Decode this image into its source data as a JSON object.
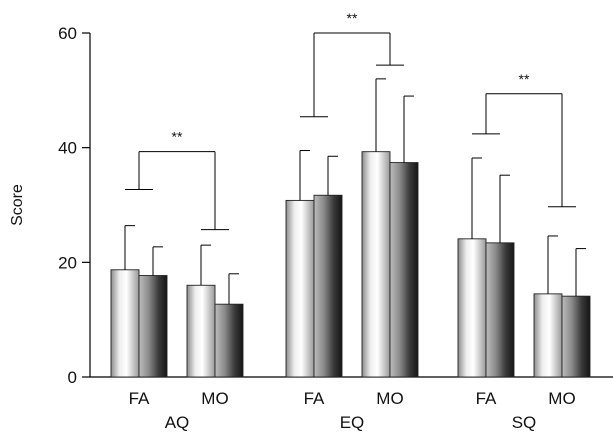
{
  "chart_data": {
    "type": "bar",
    "title": "",
    "xlabel": "",
    "ylabel": "Score",
    "ylim": [
      0,
      60
    ],
    "yticks": [
      0,
      20,
      40,
      60
    ],
    "grid": false,
    "groups": [
      {
        "label": "AQ",
        "subgroups": [
          {
            "label": "FA",
            "values": [
              18.7,
              17.7
            ],
            "errors": [
              7.7,
              5.0
            ]
          },
          {
            "label": "MO",
            "values": [
              16.0,
              12.7
            ],
            "errors": [
              7.0,
              5.3
            ]
          }
        ],
        "significance": {
          "text": "**",
          "left_y": 32.7,
          "top_y": 39.3,
          "right_y": 25.7
        }
      },
      {
        "label": "EQ",
        "subgroups": [
          {
            "label": "FA",
            "values": [
              30.8,
              31.7
            ],
            "errors": [
              8.7,
              6.8
            ]
          },
          {
            "label": "MO",
            "values": [
              39.3,
              37.4
            ],
            "errors": [
              12.7,
              11.6
            ]
          }
        ],
        "significance": {
          "text": "**",
          "left_y": 45.4,
          "top_y": 60.0,
          "right_y": 54.4
        }
      },
      {
        "label": "SQ",
        "subgroups": [
          {
            "label": "FA",
            "values": [
              24.1,
              23.4
            ],
            "errors": [
              14.1,
              11.8
            ]
          },
          {
            "label": "MO",
            "values": [
              14.5,
              14.1
            ],
            "errors": [
              10.1,
              8.3
            ]
          }
        ],
        "significance": {
          "text": "**",
          "left_y": 42.4,
          "top_y": 49.4,
          "right_y": 29.7
        }
      }
    ],
    "bar_styles": [
      "light-gradient",
      "dark-gradient"
    ]
  }
}
